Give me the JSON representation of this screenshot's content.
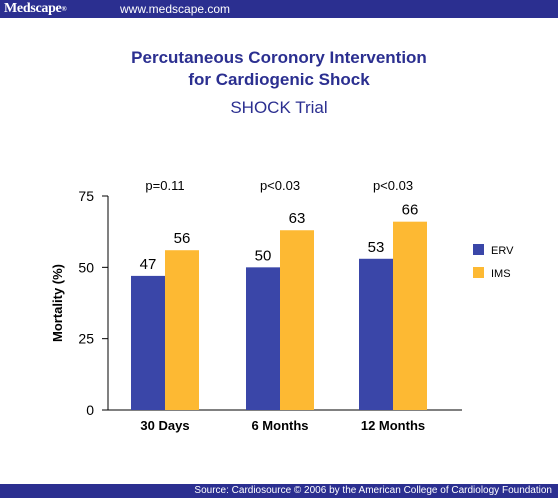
{
  "header": {
    "logo": "Medscape",
    "logo_mark": "®",
    "url": "www.medscape.com"
  },
  "footer": {
    "source": "Source: Cardiosource © 2006 by the American College of Cardiology Foundation"
  },
  "colors": {
    "bar_bg": "#2b2f90",
    "erv": "#3a46a8",
    "ims": "#fdb933"
  },
  "chart_data": {
    "type": "bar",
    "title_line1": "Percutaneous Coronory Intervention",
    "title_line2": "for Cardiogenic Shock",
    "subtitle": "SHOCK Trial",
    "ylabel": "Mortality (%)",
    "xlabel": "",
    "ylim": [
      0,
      75
    ],
    "yticks": [
      0,
      25,
      50,
      75
    ],
    "categories": [
      "30 Days",
      "6 Months",
      "12 Months"
    ],
    "series": [
      {
        "name": "ERV",
        "values": [
          47,
          50,
          53
        ]
      },
      {
        "name": "IMS",
        "values": [
          56,
          63,
          66
        ]
      }
    ],
    "annotations": [
      "p=0.11",
      "p<0.03",
      "p<0.03"
    ],
    "legend": "right",
    "grid": false
  }
}
